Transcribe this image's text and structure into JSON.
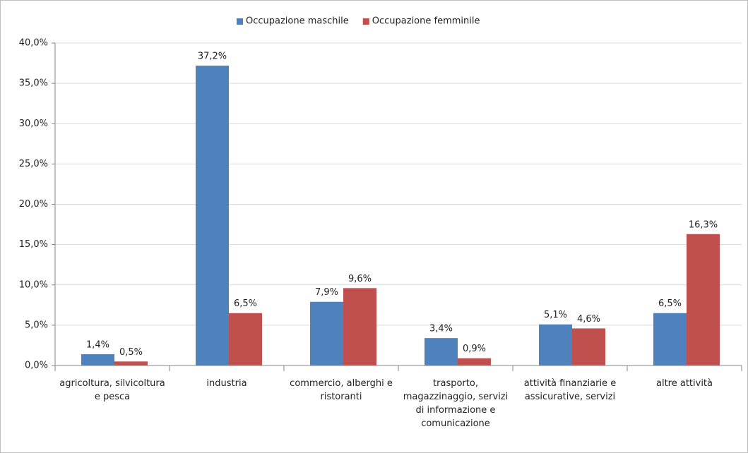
{
  "chart_data": {
    "type": "bar",
    "categories": [
      "agricoltura, silvicoltura e pesca",
      "industria",
      "commercio, alberghi e ristoranti",
      "trasporto, magazzinaggio, servizi di informazione e comunicazione",
      "attività finanziarie e assicurative, servizi",
      "altre attività"
    ],
    "series": [
      {
        "name": "Occupazione maschile",
        "color": "#4f81bd",
        "values": [
          1.4,
          37.2,
          7.9,
          3.4,
          5.1,
          6.5
        ],
        "value_labels": [
          "1,4%",
          "37,2%",
          "7,9%",
          "3,4%",
          "5,1%",
          "6,5%"
        ]
      },
      {
        "name": "Occupazione femminile",
        "color": "#c0504d",
        "values": [
          0.5,
          6.5,
          9.6,
          0.9,
          4.6,
          16.3
        ],
        "value_labels": [
          "0,5%",
          "6,5%",
          "9,6%",
          "0,9%",
          "4,6%",
          "16,3%"
        ]
      }
    ],
    "ylim": [
      0,
      40
    ],
    "yticks": [
      {
        "value": 0,
        "label": "0,0%"
      },
      {
        "value": 5,
        "label": "5,0%"
      },
      {
        "value": 10,
        "label": "10,0%"
      },
      {
        "value": 15,
        "label": "15,0%"
      },
      {
        "value": 20,
        "label": "20,0%"
      },
      {
        "value": 25,
        "label": "25,0%"
      },
      {
        "value": 30,
        "label": "30,0%"
      },
      {
        "value": 35,
        "label": "35,0%"
      },
      {
        "value": 40,
        "label": "40,0%"
      }
    ],
    "grid": true,
    "legend": "top"
  }
}
